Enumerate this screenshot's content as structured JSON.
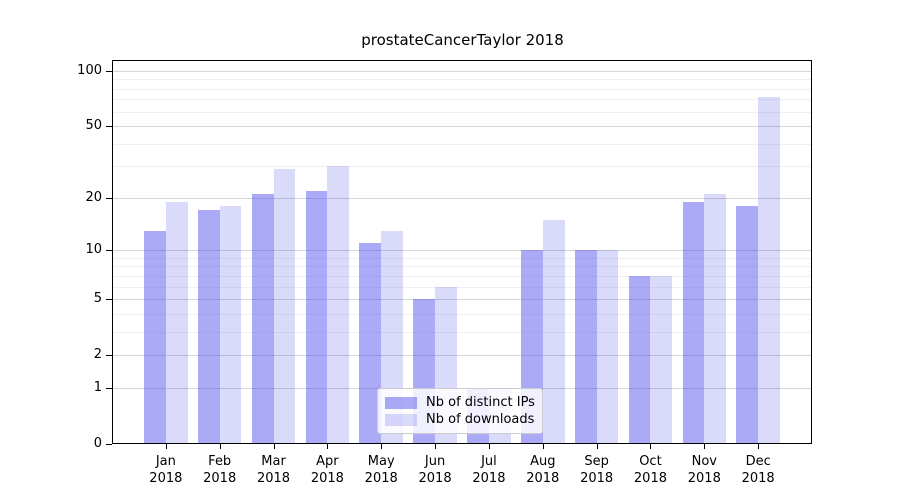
{
  "chart_data": {
    "type": "bar",
    "title": "prostateCancerTaylor 2018",
    "x_year_line": "2018",
    "categories": [
      "Jan",
      "Feb",
      "Mar",
      "Apr",
      "May",
      "Jun",
      "Jul",
      "Aug",
      "Sep",
      "Oct",
      "Nov",
      "Dec"
    ],
    "series": [
      {
        "name": "Nb of distinct IPs",
        "color": "rgba(85,85,238,0.5)",
        "values": [
          13,
          17,
          21,
          22,
          11,
          5,
          1,
          10,
          10,
          7,
          19,
          18
        ]
      },
      {
        "name": "Nb of downloads",
        "color": "rgba(85,85,238,0.22)",
        "values": [
          19,
          18,
          29,
          30,
          13,
          6,
          1,
          15,
          10,
          7,
          21,
          72
        ]
      }
    ],
    "yscale": "log1p",
    "ylim": [
      0,
      100
    ],
    "y_major_ticks": [
      0,
      1,
      2,
      5,
      10,
      20,
      50,
      100
    ],
    "y_minor_gridlines": [
      3,
      4,
      6,
      7,
      8,
      9,
      30,
      40,
      60,
      70,
      80,
      90
    ],
    "grid": true,
    "legend_position": "lower center",
    "colors": {
      "major_grid": "#d5d5d5",
      "minor_grid": "#f0f0f0",
      "spine": "#000000",
      "text": "#000000"
    }
  }
}
